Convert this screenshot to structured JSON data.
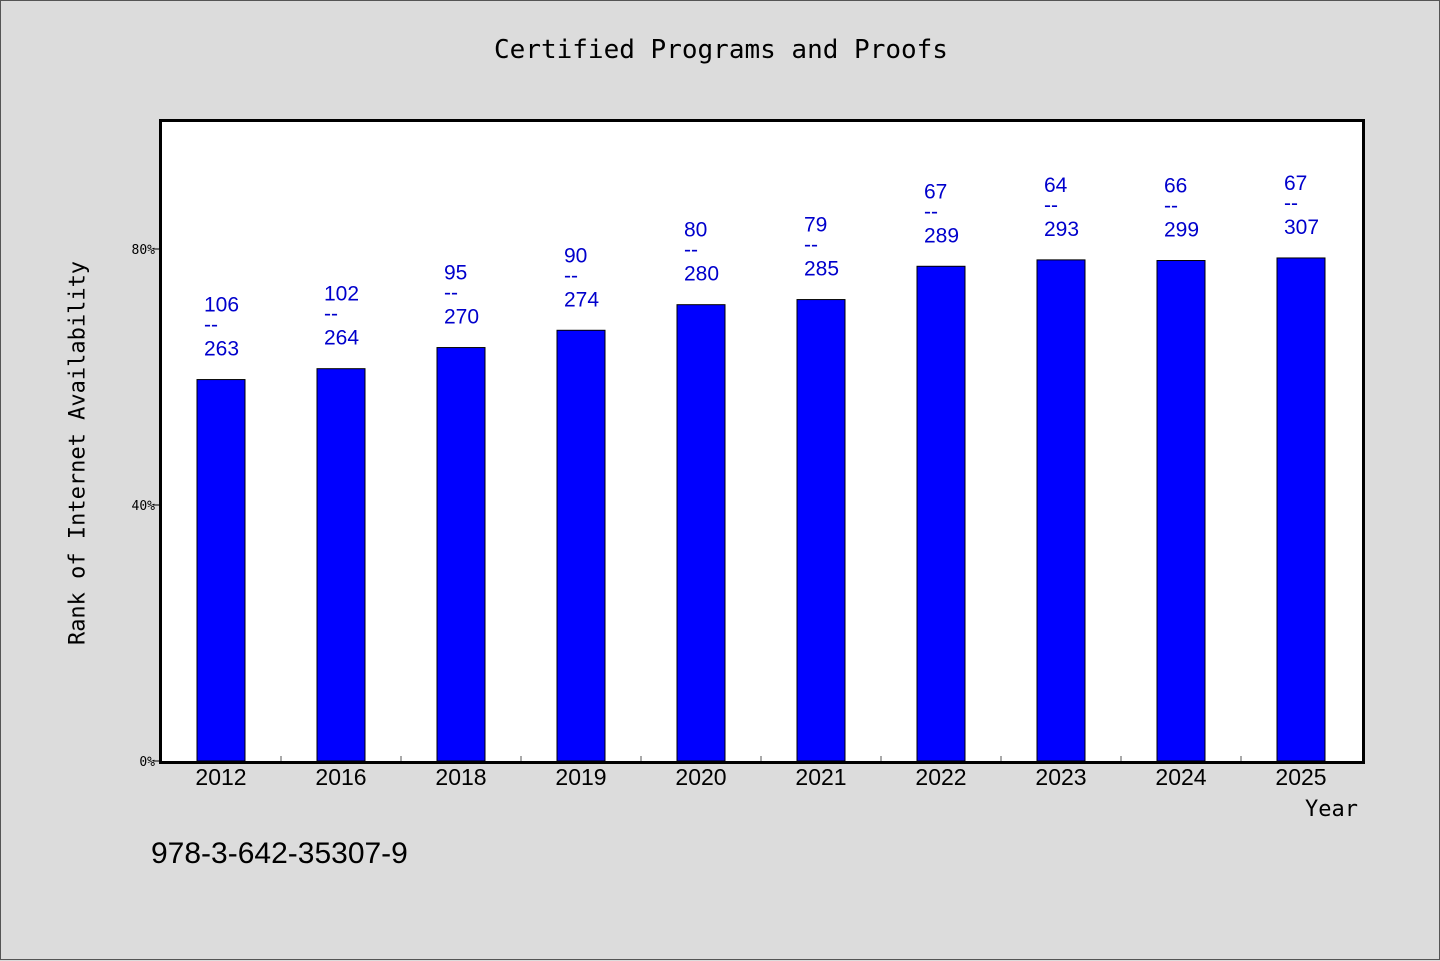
{
  "chart_data": {
    "type": "bar",
    "title": "Certified Programs and Proofs",
    "xlabel": "Year",
    "ylabel": "Rank of Internet Availability",
    "categories": [
      "2012",
      "2016",
      "2018",
      "2019",
      "2020",
      "2021",
      "2022",
      "2023",
      "2024",
      "2025"
    ],
    "values": [
      59.6,
      61.3,
      64.6,
      67.3,
      71.3,
      72.1,
      77.3,
      78.3,
      78.2,
      78.6
    ],
    "bar_labels": [
      {
        "top": "106",
        "sep": "--",
        "bottom": "263"
      },
      {
        "top": "102",
        "sep": "--",
        "bottom": "264"
      },
      {
        "top": "95",
        "sep": "--",
        "bottom": "270"
      },
      {
        "top": "90",
        "sep": "--",
        "bottom": "274"
      },
      {
        "top": "80",
        "sep": "--",
        "bottom": "280"
      },
      {
        "top": "79",
        "sep": "--",
        "bottom": "285"
      },
      {
        "top": "67",
        "sep": "--",
        "bottom": "289"
      },
      {
        "top": "64",
        "sep": "--",
        "bottom": "293"
      },
      {
        "top": "66",
        "sep": "--",
        "bottom": "299"
      },
      {
        "top": "67",
        "sep": "--",
        "bottom": "307"
      }
    ],
    "ylim": [
      0,
      100
    ],
    "yticks": [
      0,
      40,
      80
    ],
    "ytick_labels": [
      "0%",
      "40%",
      "80%"
    ],
    "grid": false,
    "legend": "none",
    "bar_color": "#0000ff",
    "label_color": "#0000cc"
  },
  "footer": {
    "code": "978-3-642-35307-9"
  }
}
